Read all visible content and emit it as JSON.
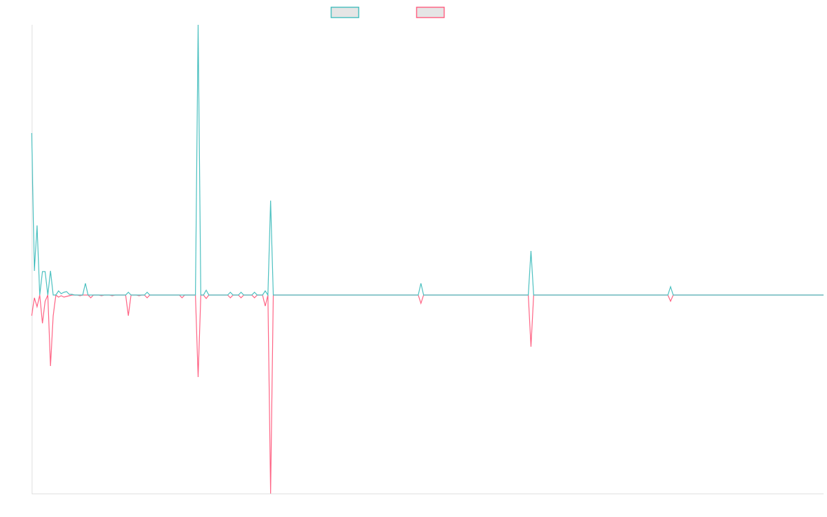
{
  "chart_data": {
    "type": "line",
    "title": "",
    "xlabel": "",
    "ylabel": "",
    "n_points": 296,
    "ylim": [
      -288,
      392
    ],
    "xlim": [
      0,
      295
    ],
    "grid": false,
    "legend_position": "top-center",
    "series": [
      {
        "name": "",
        "color": "#4bc0c0",
        "fill": "#e5e5e5",
        "nonzero": {
          "0": 235,
          "1": 35,
          "2": 101,
          "4": 34,
          "5": 34,
          "7": 35,
          "10": 6,
          "11": 2,
          "12": 4,
          "13": 5,
          "14": 1,
          "15": 1,
          "20": 17,
          "36": 4,
          "43": 4,
          "62": 392,
          "65": 7,
          "74": 4,
          "78": 4,
          "83": 4,
          "87": 6,
          "89": 137,
          "145": 17,
          "186": 64,
          "238": 12
        }
      },
      {
        "name": "",
        "color": "#ff6384",
        "fill": "#e5e5e5",
        "nonzero": {
          "0": -30,
          "1": -4,
          "2": -17,
          "4": -41,
          "5": -9,
          "7": -103,
          "8": -30,
          "10": -3,
          "11": -1,
          "12": -3,
          "13": -2,
          "14": -1,
          "18": -1,
          "22": -4,
          "26": -1,
          "30": -1,
          "36": -30,
          "40": -1,
          "43": -4,
          "56": -4,
          "62": -119,
          "65": -5,
          "74": -4,
          "78": -4,
          "83": -4,
          "87": -16,
          "89": -288,
          "145": -12,
          "186": -75,
          "238": -9
        }
      }
    ]
  }
}
